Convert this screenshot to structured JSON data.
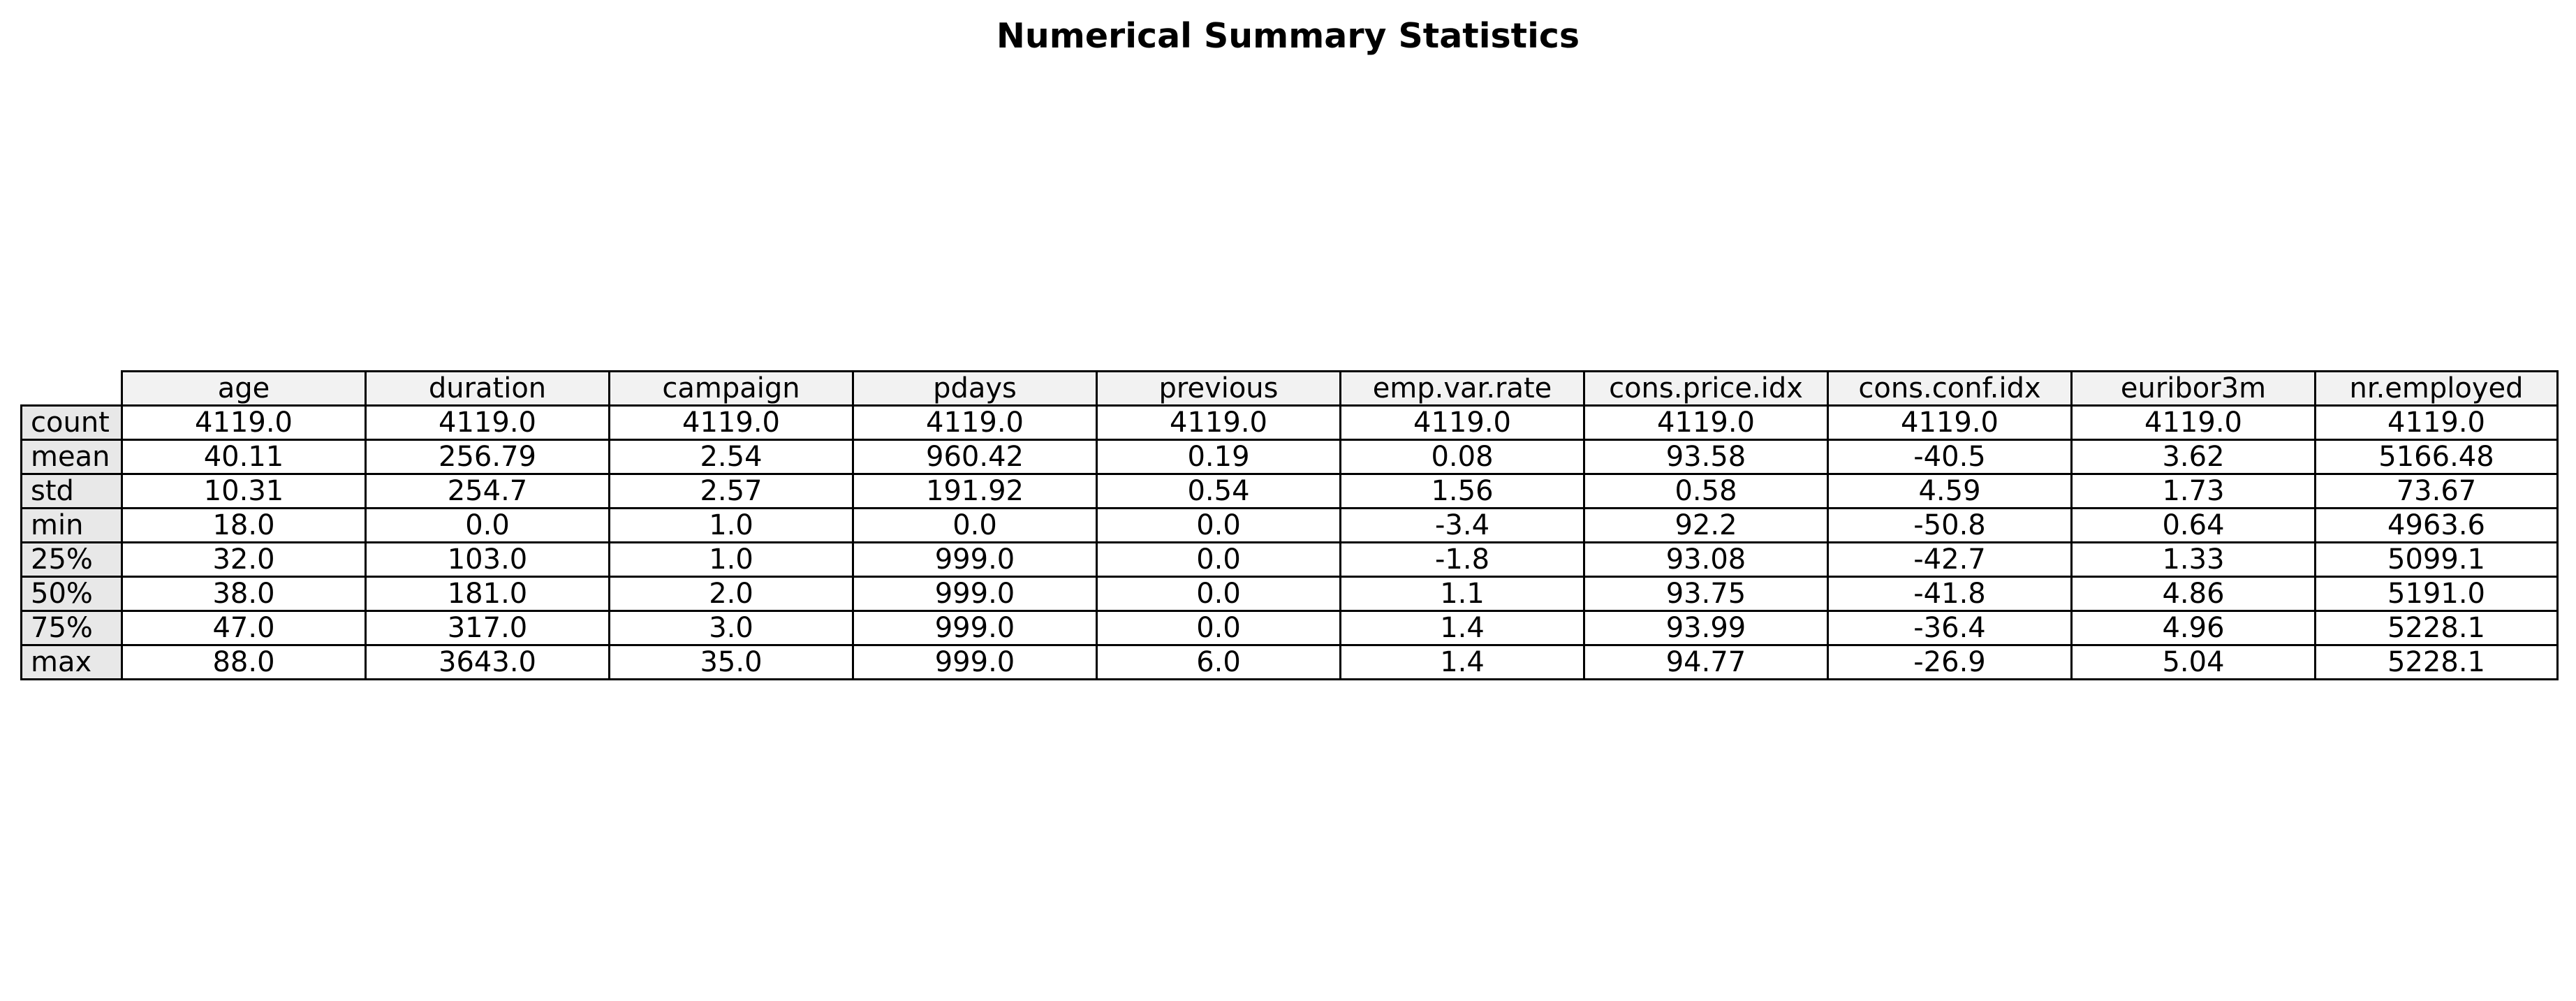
{
  "chart_data": {
    "type": "table",
    "title": "Numerical Summary Statistics",
    "columns": [
      "age",
      "duration",
      "campaign",
      "pdays",
      "previous",
      "emp.var.rate",
      "cons.price.idx",
      "cons.conf.idx",
      "euribor3m",
      "nr.employed"
    ],
    "rows": [
      {
        "label": "count",
        "values": [
          "4119.0",
          "4119.0",
          "4119.0",
          "4119.0",
          "4119.0",
          "4119.0",
          "4119.0",
          "4119.0",
          "4119.0",
          "4119.0"
        ]
      },
      {
        "label": "mean",
        "values": [
          "40.11",
          "256.79",
          "2.54",
          "960.42",
          "0.19",
          "0.08",
          "93.58",
          "-40.5",
          "3.62",
          "5166.48"
        ]
      },
      {
        "label": "std",
        "values": [
          "10.31",
          "254.7",
          "2.57",
          "191.92",
          "0.54",
          "1.56",
          "0.58",
          "4.59",
          "1.73",
          "73.67"
        ]
      },
      {
        "label": "min",
        "values": [
          "18.0",
          "0.0",
          "1.0",
          "0.0",
          "0.0",
          "-3.4",
          "92.2",
          "-50.8",
          "0.64",
          "4963.6"
        ]
      },
      {
        "label": "25%",
        "values": [
          "32.0",
          "103.0",
          "1.0",
          "999.0",
          "0.0",
          "-1.8",
          "93.08",
          "-42.7",
          "1.33",
          "5099.1"
        ]
      },
      {
        "label": "50%",
        "values": [
          "38.0",
          "181.0",
          "2.0",
          "999.0",
          "0.0",
          "1.1",
          "93.75",
          "-41.8",
          "4.86",
          "5191.0"
        ]
      },
      {
        "label": "75%",
        "values": [
          "47.0",
          "317.0",
          "3.0",
          "999.0",
          "0.0",
          "1.4",
          "93.99",
          "-36.4",
          "4.96",
          "5228.1"
        ]
      },
      {
        "label": "max",
        "values": [
          "88.0",
          "3643.0",
          "35.0",
          "999.0",
          "6.0",
          "1.4",
          "94.77",
          "-26.9",
          "5.04",
          "5228.1"
        ]
      }
    ],
    "colors": {
      "header_bg": "#f2f2f2",
      "row_label_bg": "#e8e8e8",
      "cell_bg": "#ffffff",
      "border": "#000000"
    }
  }
}
